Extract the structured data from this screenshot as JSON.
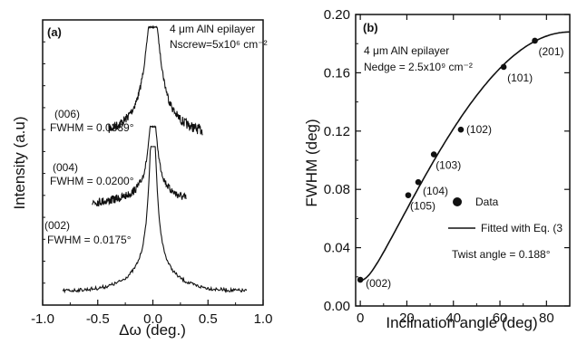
{
  "chart_data": [
    {
      "panel": "(a)",
      "type": "line",
      "xlabel": "Δω (deg.)",
      "ylabel": "Intensity (a.u)",
      "xlim": [
        -1.0,
        1.0
      ],
      "x_ticks": [
        "-1.0",
        "-0.5",
        "0.0",
        "0.5",
        "1.0"
      ],
      "annotations": {
        "sample": "4 μm AlN epilayer",
        "density": "Nscrew=5x10⁶ cm⁻²"
      },
      "series": [
        {
          "name": "(006)",
          "fwhm_label": "FWHM = 0.0339°",
          "fwhm_deg": 0.0339,
          "x_range": [
            -0.4,
            0.45
          ],
          "level": 3
        },
        {
          "name": "(004)",
          "fwhm_label": "FWHM = 0.0200°",
          "fwhm_deg": 0.02,
          "x_range": [
            -0.55,
            0.3
          ],
          "level": 2
        },
        {
          "name": "(002)",
          "fwhm_label": "FWHM = 0.0175°",
          "fwhm_deg": 0.0175,
          "x_range": [
            -0.82,
            0.85
          ],
          "level": 1
        }
      ]
    },
    {
      "panel": "(b)",
      "type": "scatter",
      "xlabel": "Inclination angle (deg)",
      "ylabel": "FWHM (deg)",
      "xlim": [
        -2,
        90
      ],
      "ylim": [
        0.0,
        0.2
      ],
      "x_ticks": [
        "0",
        "20",
        "40",
        "60",
        "80"
      ],
      "y_ticks": [
        "0.00",
        "0.04",
        "0.08",
        "0.12",
        "0.16",
        "0.20"
      ],
      "annotations": {
        "sample": "4 μm AlN epilayer",
        "density": "Nedge = 2.5x10⁹ cm⁻²",
        "twist": "Twist angle = 0.188°"
      },
      "legend": {
        "data": "Data",
        "fit": "Fitted with Eq. (3"
      },
      "points": [
        {
          "label": "(002)",
          "x": 0,
          "y": 0.018
        },
        {
          "label": "(105)",
          "x": 20.6,
          "y": 0.076
        },
        {
          "label": "(104)",
          "x": 24.9,
          "y": 0.085
        },
        {
          "label": "(103)",
          "x": 31.6,
          "y": 0.104
        },
        {
          "label": "(102)",
          "x": 43.2,
          "y": 0.121
        },
        {
          "label": "(101)",
          "x": 61.6,
          "y": 0.164
        },
        {
          "label": "(201)",
          "x": 75.0,
          "y": 0.182
        }
      ],
      "fit": {
        "y_at_0": 0.0175,
        "y_at_90": 0.188
      }
    }
  ]
}
